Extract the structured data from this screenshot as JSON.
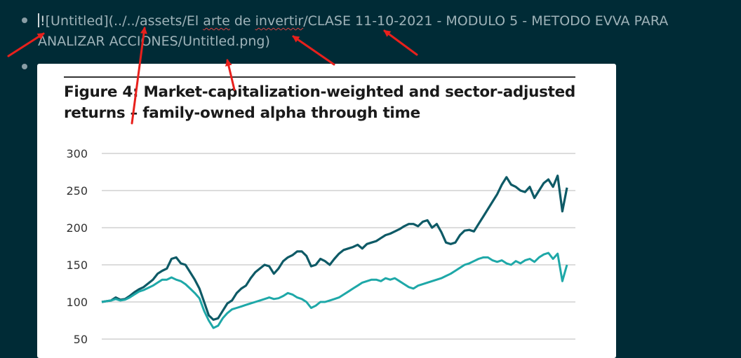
{
  "editor": {
    "line1_cursor_char": "!",
    "line1_part1": "[Untitled](../../assets/El ",
    "line1_word_arte": "arte",
    "line1_part2": " de ",
    "line1_word_invertir": "invertir",
    "line1_part3": "/CLASE 11-10-2021 - MODULO 5 - METODO EVVA PARA ANALIZAR ACCIONES/Untitled.png)"
  },
  "colors": {
    "background": "#002b36",
    "text": "#9fb3b9",
    "arrow": "#e8201c",
    "series_family": "#0e5a66",
    "series_benchmark": "#1ea8a8"
  },
  "icons": [
    "bullet-dot-icon",
    "red-arrow-annotation-icon"
  ],
  "figure": {
    "title": "Figure 4: Market-capitalization-weighted and sector-adjusted returns – family-owned alpha through time"
  },
  "chart_data": {
    "type": "line",
    "title": "Figure 4: Market-capitalization-weighted and sector-adjusted returns – family-owned alpha through time",
    "xlabel": "",
    "ylabel": "",
    "ylim": [
      50,
      300
    ],
    "yticks": [
      "50",
      "100",
      "150",
      "200",
      "250",
      "300"
    ],
    "grid": true,
    "x": [
      0,
      1,
      2,
      3,
      4,
      5,
      6,
      7,
      8,
      9,
      10,
      11,
      12,
      13,
      14,
      15,
      16,
      17,
      18,
      19,
      20,
      21,
      22,
      23,
      24,
      25,
      26,
      27,
      28,
      29,
      30,
      31,
      32,
      33,
      34,
      35,
      36,
      37,
      38,
      39,
      40,
      41,
      42,
      43,
      44,
      45,
      46,
      47,
      48,
      49,
      50,
      51,
      52,
      53,
      54,
      55,
      56,
      57,
      58,
      59,
      60,
      61,
      62,
      63,
      64,
      65,
      66,
      67,
      68,
      69,
      70,
      71,
      72,
      73,
      74,
      75,
      76,
      77,
      78,
      79,
      80,
      81,
      82,
      83,
      84,
      85,
      86,
      87,
      88,
      89,
      90,
      91,
      92,
      93,
      94,
      95,
      96,
      97,
      98,
      99,
      100
    ],
    "series": [
      {
        "values": [
          100,
          101,
          102,
          106,
          103,
          104,
          108,
          113,
          117,
          120,
          125,
          130,
          138,
          142,
          145,
          158,
          160,
          152,
          150,
          140,
          130,
          118,
          100,
          82,
          76,
          78,
          88,
          98,
          102,
          112,
          118,
          122,
          132,
          140,
          145,
          150,
          148,
          138,
          145,
          155,
          160,
          163,
          168,
          168,
          162,
          148,
          150,
          158,
          155,
          150,
          158,
          165,
          170,
          172,
          174,
          177,
          172,
          178,
          180,
          182,
          186,
          190,
          192,
          195,
          198,
          202,
          205,
          205,
          202,
          208,
          210,
          200,
          205,
          194,
          180,
          178,
          180,
          190,
          196,
          197,
          195,
          205,
          215,
          225,
          235,
          245,
          258,
          268,
          258,
          255,
          250,
          248,
          255,
          240,
          250,
          260,
          265,
          255,
          270,
          222,
          254
        ]
      },
      {
        "values": [
          100,
          101,
          102,
          104,
          102,
          103,
          106,
          110,
          114,
          116,
          119,
          122,
          126,
          130,
          130,
          133,
          130,
          128,
          124,
          118,
          112,
          105,
          88,
          75,
          65,
          68,
          78,
          85,
          90,
          92,
          94,
          96,
          98,
          100,
          102,
          104,
          106,
          104,
          105,
          108,
          112,
          110,
          106,
          104,
          100,
          92,
          95,
          100,
          100,
          102,
          104,
          106,
          110,
          114,
          118,
          122,
          126,
          128,
          130,
          130,
          128,
          132,
          130,
          132,
          128,
          124,
          120,
          118,
          122,
          124,
          126,
          128,
          130,
          132,
          135,
          138,
          142,
          146,
          150,
          152,
          155,
          158,
          160,
          160,
          156,
          154,
          156,
          152,
          150,
          155,
          152,
          156,
          158,
          154,
          160,
          164,
          166,
          158,
          165,
          128,
          150
        ]
      }
    ]
  }
}
